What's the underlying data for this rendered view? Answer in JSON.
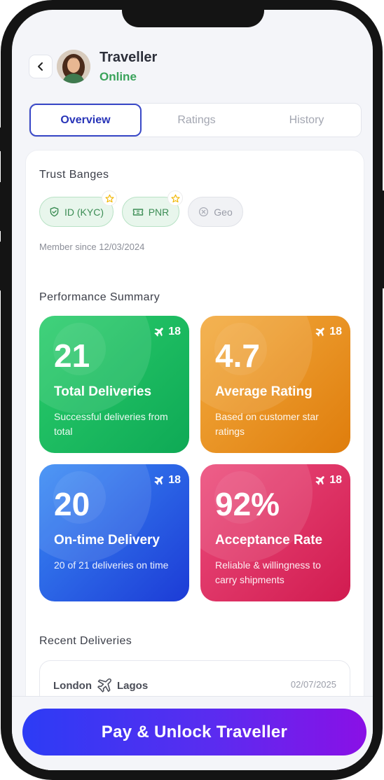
{
  "header": {
    "title": "Traveller",
    "status": "Online",
    "status_color": "#3aa35b"
  },
  "tabs": [
    {
      "label": "Overview",
      "active": true
    },
    {
      "label": "Ratings",
      "active": false
    },
    {
      "label": "History",
      "active": false
    }
  ],
  "trust": {
    "title": "Trust Banges",
    "badges": [
      {
        "label": "ID (KYC)",
        "icon": "shield-check-icon",
        "verified": true,
        "starred": true
      },
      {
        "label": "PNR",
        "icon": "ticket-icon",
        "verified": true,
        "starred": true
      },
      {
        "label": "Geo",
        "icon": "x-circle-icon",
        "verified": false,
        "starred": false
      }
    ],
    "member_since": "Member since 12/03/2024"
  },
  "performance": {
    "title": "Performance Summary",
    "cards": [
      {
        "value": "21",
        "label": "Total Deliveries",
        "desc": "Successful deliveries from total",
        "trips": "18",
        "color": "#1bbd61"
      },
      {
        "value": "4.7",
        "label": "Average Rating",
        "desc": "Based on customer star ratings",
        "trips": "18",
        "color": "#ea9322"
      },
      {
        "value": "20",
        "label": "On-time Delivery",
        "desc": "20 of 21 deliveries on time",
        "trips": "18",
        "color": "#2b63e6"
      },
      {
        "value": "92%",
        "label": "Acceptance Rate",
        "desc": "Reliable & willingness to carry shipments",
        "trips": "18",
        "color": "#e03466"
      }
    ]
  },
  "recent": {
    "title": "Recent Deliveries",
    "items": [
      {
        "from": "London",
        "to": "Lagos",
        "date": "02/07/2025"
      }
    ]
  },
  "cta": {
    "label": "Pay & Unlock Traveller"
  }
}
